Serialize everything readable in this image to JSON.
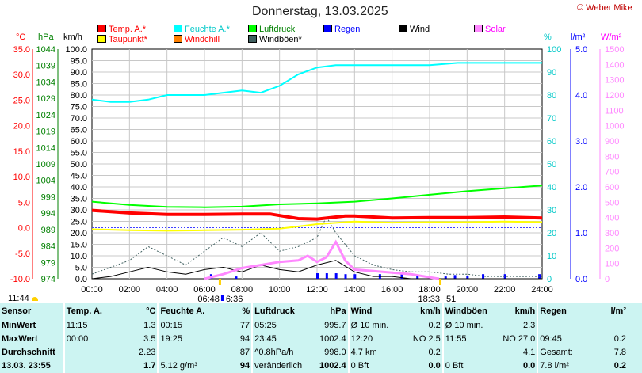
{
  "title": "Donnerstag, 13.03.2025",
  "credit": "© Weber Mike",
  "legend": [
    {
      "label": "Temp. A.*",
      "color": "#ff0000",
      "text_color": "#ff0000"
    },
    {
      "label": "Feuchte A.*",
      "color": "#00ffff",
      "text_color": "#00c8c8"
    },
    {
      "label": "Luftdruck",
      "color": "#00ff00",
      "text_color": "#008000"
    },
    {
      "label": "Regen",
      "color": "#0000ff",
      "text_color": "#0000ff"
    },
    {
      "label": "Wind",
      "color": "#000000",
      "text_color": "#000000"
    },
    {
      "label": "Solar",
      "color": "#ff88ff",
      "text_color": "#ff00ff"
    },
    {
      "label": "Taupunkt*",
      "color": "#ffff00",
      "text_color": "#ff0000"
    },
    {
      "label": "Windchill",
      "color": "#ff8000",
      "text_color": "#ff0000"
    },
    {
      "label": "Windböen*",
      "color": "#406060",
      "text_color": "#000000"
    }
  ],
  "axes": {
    "temp_unit": "°C",
    "hpa_unit": "hPa",
    "kmh_unit": "km/h",
    "pct_unit": "%",
    "rain_unit": "l/m²",
    "solar_unit": "W/m²",
    "temp_ticks": [
      "35.0",
      "30.0",
      "25.0",
      "20.0",
      "15.0",
      "10.0",
      "5.0",
      "0.0",
      "-5.0",
      "-10.0"
    ],
    "hpa_ticks": [
      "1044",
      "1039",
      "1034",
      "1029",
      "1024",
      "1019",
      "1014",
      "1009",
      "1004",
      "999",
      "994",
      "989",
      "984",
      "979",
      "974"
    ],
    "kmh_ticks": [
      "100.0",
      "95.0",
      "90.0",
      "85.0",
      "80.0",
      "75.0",
      "70.0",
      "65.0",
      "60.0",
      "55.0",
      "50.0",
      "45.0",
      "40.0",
      "35.0",
      "30.0",
      "25.0",
      "20.0",
      "15.0",
      "10.0",
      "5.0",
      "0.0"
    ],
    "pct_ticks": [
      "100",
      "90",
      "80",
      "70",
      "60",
      "50",
      "40",
      "30",
      "20",
      "10",
      "0"
    ],
    "rain_ticks": [
      "5.0",
      "4.0",
      "3.0",
      "2.0",
      "1.0",
      "0.0"
    ],
    "solar_ticks": [
      "1500",
      "1400",
      "1300",
      "1200",
      "1100",
      "1000",
      "900",
      "800",
      "700",
      "600",
      "500",
      "400",
      "300",
      "200",
      "100",
      "0"
    ],
    "x_ticks": [
      "00:00",
      "02:00",
      "04:00",
      "06:00",
      "08:00",
      "10:00",
      "12:00",
      "14:00",
      "16:00",
      "18:00",
      "20:00",
      "22:00",
      "24:00"
    ],
    "sunrise": "06:48",
    "sunset": "18:33",
    "moon_a": "6:36",
    "moon_b": "51",
    "left_time": "11:44"
  },
  "chart_data": {
    "type": "line",
    "title": "Donnerstag, 13.03.2025",
    "x_label": "",
    "x_range": [
      "00:00",
      "24:00"
    ],
    "series": [
      {
        "name": "Temp. A.*",
        "unit": "°C",
        "x": [
          "00:00",
          "02:00",
          "04:00",
          "06:00",
          "08:00",
          "09:30",
          "11:00",
          "12:00",
          "13:30",
          "14:00",
          "16:00",
          "18:00",
          "20:00",
          "22:00",
          "24:00"
        ],
        "y": [
          3.4,
          2.9,
          2.6,
          2.6,
          2.7,
          2.7,
          1.8,
          1.7,
          2.3,
          2.3,
          1.9,
          2.0,
          2.0,
          2.1,
          1.9
        ]
      },
      {
        "name": "Feuchte A.*",
        "unit": "%",
        "x": [
          "00:00",
          "01:00",
          "02:00",
          "03:00",
          "04:00",
          "06:00",
          "07:00",
          "08:00",
          "09:00",
          "10:00",
          "11:00",
          "12:00",
          "13:00",
          "14:00",
          "16:00",
          "18:00",
          "19:30",
          "22:00",
          "24:00"
        ],
        "y": [
          78,
          77,
          77,
          78,
          80,
          80,
          81,
          82,
          81,
          84,
          89,
          92,
          93,
          93,
          93,
          93,
          94,
          94,
          94
        ]
      },
      {
        "name": "Luftdruck",
        "unit": "hPa",
        "x": [
          "00:00",
          "02:00",
          "04:00",
          "06:00",
          "08:00",
          "10:00",
          "12:00",
          "14:00",
          "16:00",
          "18:00",
          "20:00",
          "22:00",
          "24:00"
        ],
        "y": [
          997.5,
          996.5,
          995.9,
          995.8,
          996.0,
          996.7,
          997.0,
          997.5,
          998.5,
          999.6,
          1000.7,
          1001.6,
          1002.4
        ]
      },
      {
        "name": "Taupunkt*",
        "unit": "°C",
        "x": [
          "00:00",
          "02:00",
          "04:00",
          "06:00",
          "08:00",
          "10:00",
          "12:00",
          "14:00",
          "16:00",
          "18:00",
          "20:00",
          "22:00",
          "24:00"
        ],
        "y": [
          -0.3,
          -0.5,
          -0.6,
          -0.5,
          -0.4,
          -0.2,
          0.7,
          1.2,
          1.0,
          1.1,
          1.1,
          1.2,
          1.1
        ]
      },
      {
        "name": "Windböen*",
        "unit": "km/h",
        "x": [
          "00:00",
          "01:00",
          "02:00",
          "03:00",
          "04:00",
          "05:00",
          "06:00",
          "07:00",
          "08:00",
          "09:00",
          "10:00",
          "11:00",
          "12:00",
          "12:30",
          "13:00",
          "14:00",
          "15:00",
          "16:00",
          "17:00",
          "18:00",
          "19:00",
          "20:00",
          "21:00",
          "22:00",
          "23:00",
          "24:00"
        ],
        "y": [
          2,
          5,
          8,
          14,
          10,
          6,
          12,
          18,
          14,
          20,
          12,
          14,
          18,
          27,
          20,
          10,
          6,
          4,
          3,
          3,
          2,
          2,
          1,
          1,
          1,
          1
        ]
      },
      {
        "name": "Wind",
        "unit": "km/h",
        "x": [
          "00:00",
          "01:00",
          "02:00",
          "03:00",
          "04:00",
          "05:00",
          "06:00",
          "07:00",
          "08:00",
          "09:00",
          "10:00",
          "11:00",
          "12:00",
          "13:00",
          "14:00",
          "15:00",
          "16:00",
          "17:00",
          "18:00",
          "19:00",
          "20:00",
          "21:00",
          "22:00",
          "23:00",
          "24:00"
        ],
        "y": [
          0,
          1,
          3,
          5,
          3,
          2,
          4,
          5,
          3,
          6,
          4,
          3,
          6,
          8,
          3,
          1,
          1,
          0,
          0,
          0,
          0,
          0,
          0,
          0,
          0
        ]
      },
      {
        "name": "Solar",
        "unit": "W/m²",
        "x": [
          "06:00",
          "07:00",
          "08:00",
          "09:00",
          "10:00",
          "11:00",
          "11:30",
          "12:00",
          "12:30",
          "13:00",
          "13:30",
          "14:00",
          "15:00",
          "16:00",
          "17:00",
          "18:00",
          "18:30"
        ],
        "y": [
          0,
          30,
          70,
          90,
          110,
          120,
          150,
          110,
          140,
          240,
          120,
          60,
          50,
          40,
          30,
          10,
          0
        ]
      },
      {
        "name": "Regen",
        "unit": "l/m²",
        "type": "bar",
        "x": [
          "06:20",
          "07:40",
          "12:00",
          "12:30",
          "13:00",
          "13:30",
          "14:00",
          "15:20",
          "16:30",
          "17:20",
          "18:50",
          "19:20",
          "20:00",
          "20:50",
          "22:00",
          "23:50"
        ],
        "y": [
          0.1,
          0.05,
          0.12,
          0.12,
          0.12,
          0.1,
          0.1,
          0.1,
          0.1,
          0.08,
          0.05,
          0.08,
          0.06,
          0.1,
          0.1,
          0.1
        ]
      }
    ]
  },
  "stats": {
    "header": [
      "Sensor",
      "Temp. A.",
      "°C",
      "Feuchte A.",
      "%",
      "Luftdruck",
      "hPa",
      "Wind",
      "km/h",
      "Windböen",
      "km/h",
      "Regen",
      "l/m²"
    ],
    "rows": [
      [
        "MinWert",
        "11:15",
        "1.3",
        "00:15",
        "77",
        "05:25",
        "995.7",
        "Ø 10 min.",
        "0.2",
        "Ø 10 min.",
        "2.3",
        "",
        ""
      ],
      [
        "MaxWert",
        "00:00",
        "3.5",
        "19:25",
        "94",
        "23:45",
        "1002.4",
        "12:20",
        "NO 2.5",
        "11:55",
        "NO 27.0",
        "09:45",
        "0.2"
      ],
      [
        "Durchschnitt",
        "",
        "2.23",
        "",
        "87",
        "^0.8hPa/h",
        "998.0",
        "4.7 km",
        "0.2",
        "",
        "4.1",
        "Gesamt:",
        "7.8"
      ],
      [
        "13.03. 23:55",
        "",
        "1.7",
        "5.12 g/m³",
        "94",
        "veränderlich",
        "1002.4",
        "0 Bft",
        "0.0",
        "0 Bft",
        "0.0",
        "7.8 l/m²",
        "0.2"
      ]
    ]
  }
}
